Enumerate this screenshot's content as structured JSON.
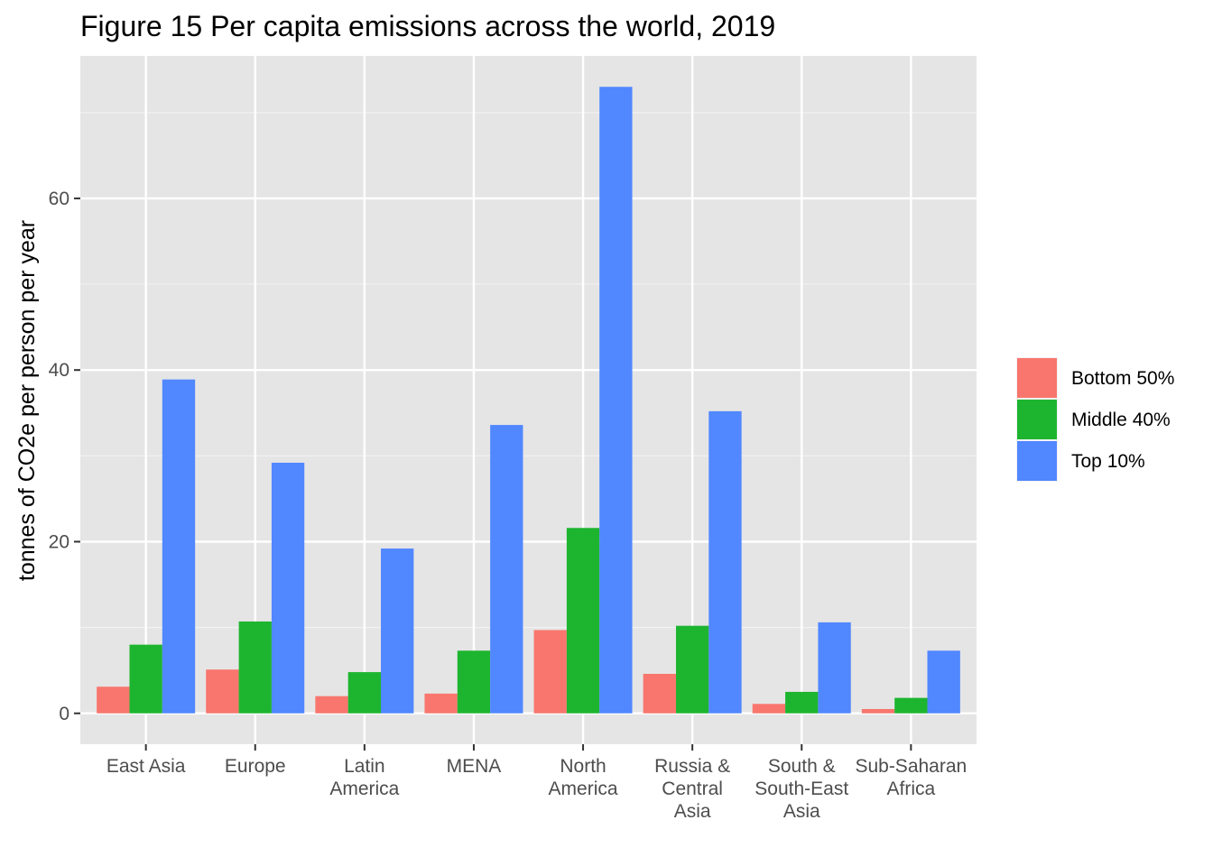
{
  "chart_data": {
    "type": "bar",
    "title": "Figure 15 Per capita emissions across the world, 2019",
    "xlabel": "",
    "ylabel": "tonnes of CO2e per person per year",
    "categories": [
      [
        "East Asia"
      ],
      [
        "Europe"
      ],
      [
        "Latin",
        "America"
      ],
      [
        "MENA"
      ],
      [
        "North",
        "America"
      ],
      [
        "Russia &",
        "Central",
        "Asia"
      ],
      [
        "South &",
        "South-East",
        "Asia"
      ],
      [
        "Sub-Saharan",
        "Africa"
      ]
    ],
    "series": [
      {
        "name": "Bottom 50%",
        "color": "#F8766D",
        "values": [
          3.1,
          5.1,
          2.0,
          2.3,
          9.7,
          4.6,
          1.1,
          0.5
        ]
      },
      {
        "name": "Middle 40%",
        "color": "#1DB52F",
        "values": [
          8.0,
          10.7,
          4.8,
          7.3,
          21.6,
          10.2,
          2.5,
          1.8
        ]
      },
      {
        "name": "Top 10%",
        "color": "#5187FF",
        "values": [
          38.9,
          29.2,
          19.2,
          33.6,
          73.0,
          35.2,
          10.6,
          7.3
        ]
      }
    ],
    "yticks": [
      0,
      20,
      40,
      60
    ],
    "ylim": [
      -3.6,
      76.6
    ],
    "grid": true,
    "legend_position": "right"
  }
}
